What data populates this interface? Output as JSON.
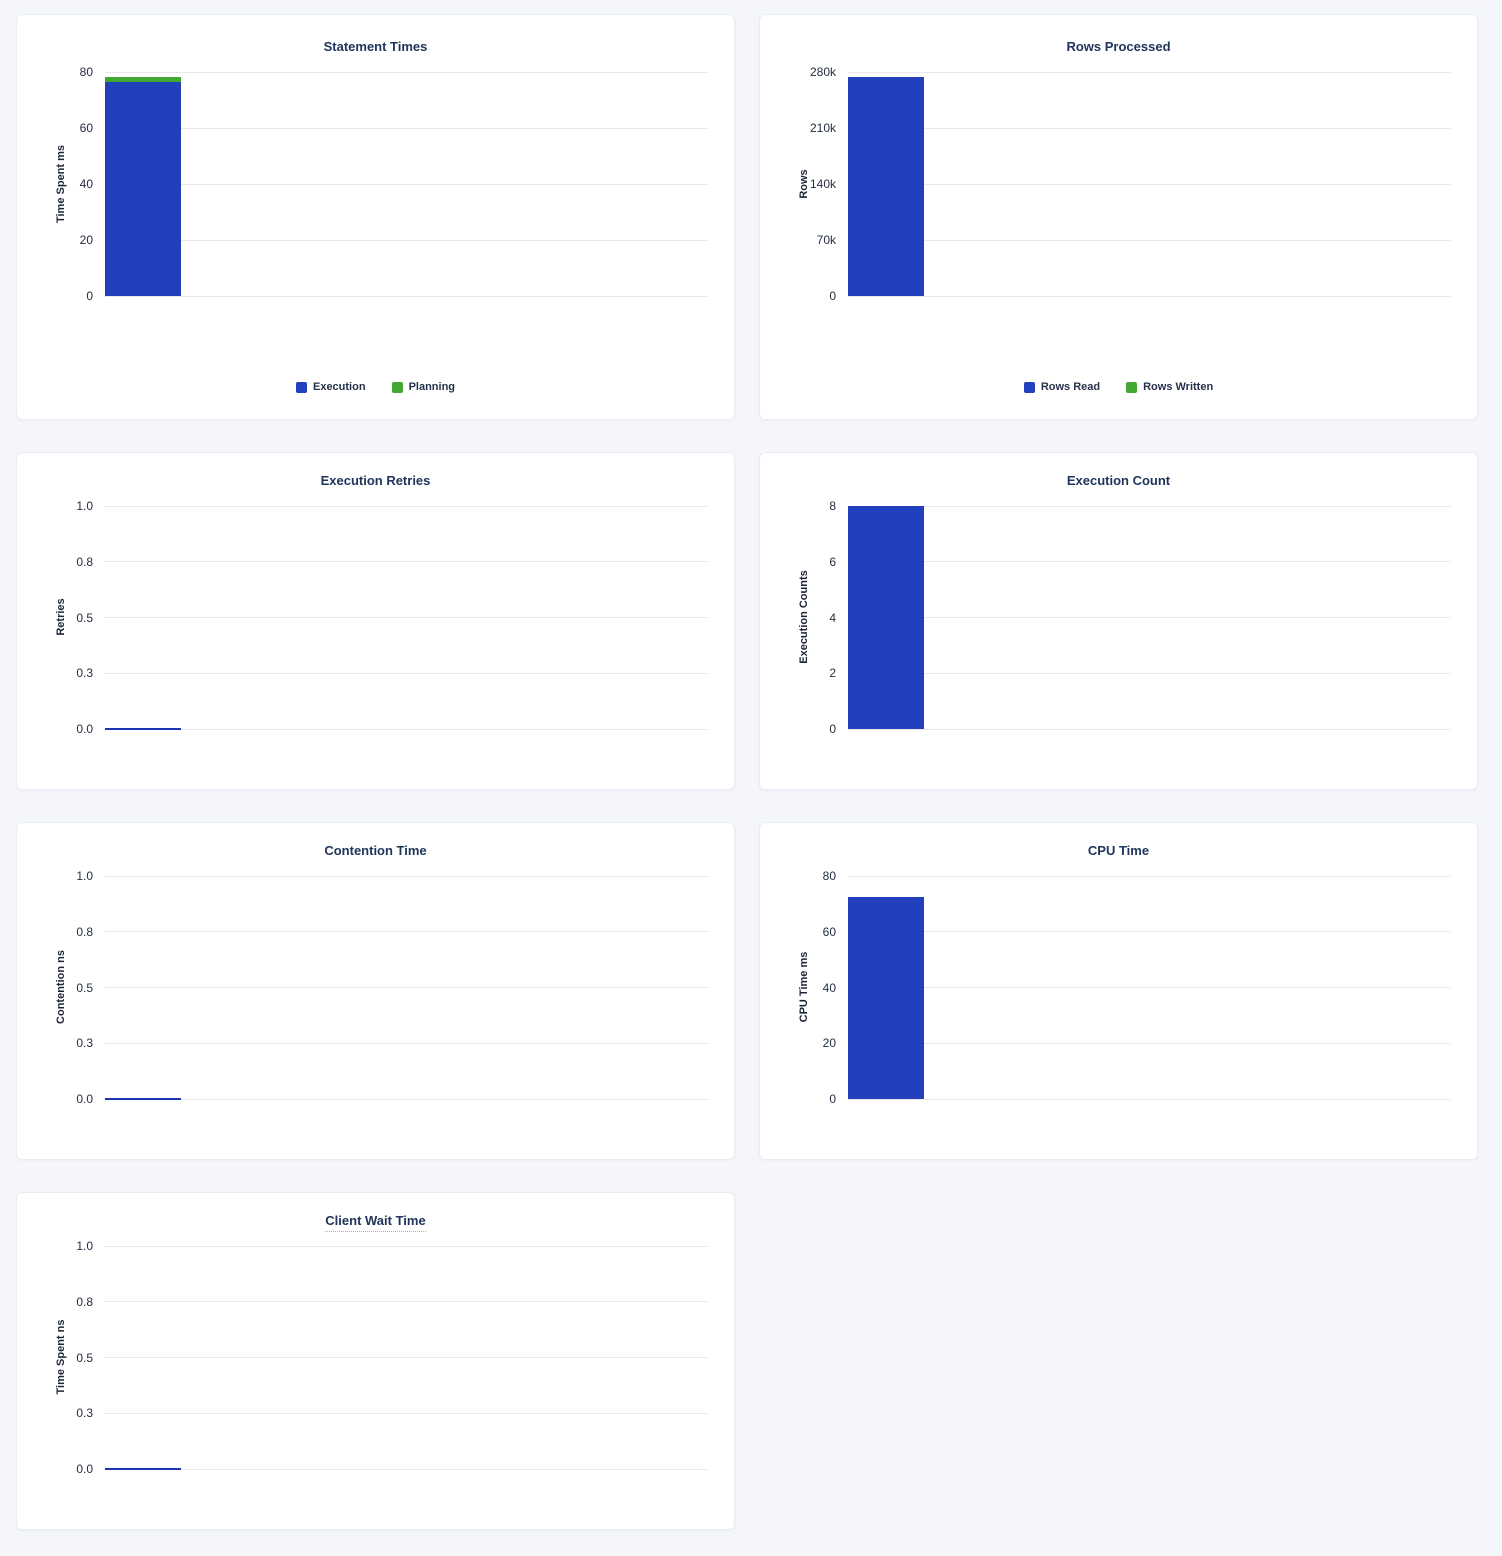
{
  "page": {
    "background_color": "#f4f6fa",
    "card_background": "#ffffff",
    "title_color": "#20355c",
    "gridline_color": "#e9e9e9"
  },
  "chart_data": [
    {
      "type": "bar",
      "title": "Statement Times",
      "ylabel": "Time Spent ms",
      "yticks": [
        "0",
        "20",
        "40",
        "60",
        "80"
      ],
      "ymax": 80,
      "series": [
        {
          "name": "Execution",
          "value": 76.5,
          "color": "#2240bb"
        },
        {
          "name": "Planning",
          "value": 1.8,
          "color": "#42a733"
        }
      ],
      "stacked": true,
      "show_legend": true,
      "legend_position": "bottom",
      "grid": true
    },
    {
      "type": "bar",
      "title": "Rows Processed",
      "ylabel": "Rows",
      "yticks": [
        "0",
        "70k",
        "140k",
        "210k",
        "280k"
      ],
      "ymax": 280000,
      "series": [
        {
          "name": "Rows Read",
          "value": 274000,
          "color": "#2240bb"
        },
        {
          "name": "Rows Written",
          "value": 0,
          "color": "#42a733"
        }
      ],
      "stacked": true,
      "show_legend": true,
      "legend_position": "bottom",
      "grid": true
    },
    {
      "type": "line",
      "title": "Execution Retries",
      "ylabel": "Retries",
      "yticks": [
        "0.0",
        "0.3",
        "0.5",
        "0.8",
        "1.0"
      ],
      "ymax": 1.0,
      "series": [
        {
          "name": "Retries",
          "value": 0.0,
          "color": "#1d34b5"
        }
      ],
      "show_legend": false,
      "grid": true
    },
    {
      "type": "bar",
      "title": "Execution Count",
      "ylabel": "Execution Counts",
      "yticks": [
        "0",
        "2",
        "4",
        "6",
        "8"
      ],
      "ymax": 8,
      "series": [
        {
          "name": "Execution Count",
          "value": 8,
          "color": "#2240bb"
        }
      ],
      "stacked": false,
      "show_legend": false,
      "grid": true
    },
    {
      "type": "line",
      "title": "Contention Time",
      "ylabel": "Contention ns",
      "yticks": [
        "0.0",
        "0.3",
        "0.5",
        "0.8",
        "1.0"
      ],
      "ymax": 1.0,
      "series": [
        {
          "name": "Contention",
          "value": 0.0,
          "color": "#1d34b5"
        }
      ],
      "show_legend": false,
      "grid": true
    },
    {
      "type": "bar",
      "title": "CPU Time",
      "ylabel": "CPU Time ms",
      "yticks": [
        "0",
        "20",
        "40",
        "60",
        "80"
      ],
      "ymax": 80,
      "series": [
        {
          "name": "CPU Time",
          "value": 72.5,
          "color": "#2240bb"
        }
      ],
      "stacked": false,
      "show_legend": false,
      "grid": true
    },
    {
      "type": "line",
      "title": "Client Wait Time",
      "title_has_tooltip_underline": true,
      "ylabel": "Time Spent ns",
      "yticks": [
        "0.0",
        "0.3",
        "0.5",
        "0.8",
        "1.0"
      ],
      "ymax": 1.0,
      "series": [
        {
          "name": "Client Wait",
          "value": 0.0,
          "color": "#1d34b5"
        }
      ],
      "show_legend": false,
      "grid": true
    }
  ]
}
